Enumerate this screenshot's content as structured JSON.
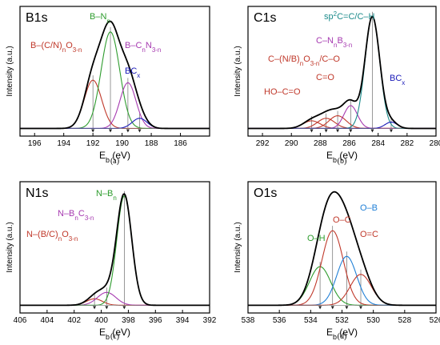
{
  "chart_data": [
    {
      "type": "line",
      "title": "B1s",
      "xlabel": "E_b (eV)",
      "ylabel": "Intensity (a.u.)",
      "xlim": [
        197,
        184
      ],
      "x_ticks": [
        196,
        194,
        192,
        190,
        188,
        186
      ],
      "sublabel": "(a)",
      "peaks": [
        {
          "label": "B–(C/N)nO3-n",
          "color": "#c0392b",
          "center": 192.0,
          "height": 0.38,
          "width": 1.4
        },
        {
          "label": "B–Nn",
          "color": "#2e9c2e",
          "center": 190.8,
          "height": 0.76,
          "width": 1.5
        },
        {
          "label": "B–CnN3-n",
          "color": "#a63ab0",
          "center": 189.6,
          "height": 0.36,
          "width": 1.3
        },
        {
          "label": "BCx",
          "color": "#1a1ab8",
          "center": 188.8,
          "height": 0.08,
          "width": 1.2
        }
      ],
      "annotations": [
        {
          "text": "B–N",
          "sub": "n",
          "color": "#2e9c2e"
        },
        {
          "text": "B–(C/N)",
          "sub": "n",
          "text2": "O",
          "sub2": "3-n",
          "color": "#c0392b"
        },
        {
          "text": "B–C",
          "sub": "n",
          "text2": "N",
          "sub2": "3-n",
          "color": "#a63ab0"
        },
        {
          "text": "BC",
          "sub": "x",
          "color": "#1a1ab8"
        }
      ]
    },
    {
      "type": "line",
      "title": "C1s",
      "xlabel": "E_b (eV)",
      "ylabel": "Intensity (a.u.)",
      "xlim": [
        293,
        280
      ],
      "x_ticks": [
        292,
        290,
        288,
        286,
        284,
        282,
        280
      ],
      "sublabel": "(b)",
      "peaks": [
        {
          "label": "HO–C=O",
          "color": "#c0392b",
          "center": 288.6,
          "height": 0.06,
          "width": 1.4
        },
        {
          "label": "C=O",
          "color": "#c0392b",
          "center": 287.6,
          "height": 0.08,
          "width": 1.4
        },
        {
          "label": "C–(N/B)nO3-n/C–O",
          "color": "#c0392b",
          "center": 286.8,
          "height": 0.1,
          "width": 1.4
        },
        {
          "label": "C–NnB3-n",
          "color": "#a63ab0",
          "center": 285.9,
          "height": 0.18,
          "width": 1.1
        },
        {
          "label": "sp2C=C/C–H",
          "color": "#1a8a8a",
          "center": 284.4,
          "height": 0.88,
          "width": 1.2
        },
        {
          "label": "BCx",
          "color": "#1a1ab8",
          "center": 283.1,
          "height": 0.05,
          "width": 1.0
        }
      ],
      "annotations": [
        {
          "text": "sp",
          "sup": "2",
          "text2": "C=C/C–H",
          "color": "#1a8a8a"
        },
        {
          "text": "C–N",
          "sub": "n",
          "text2": "B",
          "sub2": "3-n",
          "color": "#a63ab0"
        },
        {
          "text": "C–(N/B)",
          "sub": "n",
          "text2": "O",
          "sub2": "3-n",
          "text3": "/C–O",
          "color": "#c0392b"
        },
        {
          "text": "C=O",
          "color": "#c0392b"
        },
        {
          "text": "HO–C=O",
          "color": "#c0392b"
        },
        {
          "text": "BC",
          "sub": "x",
          "color": "#1a1ab8"
        }
      ]
    },
    {
      "type": "line",
      "title": "N1s",
      "xlabel": "E_b (eV)",
      "ylabel": "Intensity (a.u.)",
      "xlim": [
        406,
        392
      ],
      "x_ticks": [
        406,
        404,
        402,
        400,
        398,
        396,
        394,
        392
      ],
      "sublabel": "(c)",
      "peaks": [
        {
          "label": "N–(B/C)nO3-n",
          "color": "#c0392b",
          "center": 400.5,
          "height": 0.05,
          "width": 1.4
        },
        {
          "label": "N–BnC3-n",
          "color": "#a63ab0",
          "center": 399.6,
          "height": 0.1,
          "width": 1.6
        },
        {
          "label": "N–Bn",
          "color": "#2e9c2e",
          "center": 398.3,
          "height": 0.85,
          "width": 1.3
        }
      ],
      "annotations": [
        {
          "text": "N–B",
          "sub": "n",
          "color": "#2e9c2e"
        },
        {
          "text": "N–B",
          "sub": "n",
          "text2": "C",
          "sub2": "3-n",
          "color": "#a63ab0"
        },
        {
          "text": "N–(B/C)",
          "sub": "n",
          "text2": "O",
          "sub2": "3-n",
          "color": "#c0392b"
        }
      ]
    },
    {
      "type": "line",
      "title": "O1s",
      "xlabel": "E_b (eV)",
      "ylabel": "Intensity (a.u.)",
      "xlim": [
        538,
        526
      ],
      "x_ticks": [
        538,
        536,
        534,
        532,
        530,
        528,
        526
      ],
      "sublabel": "(d)",
      "peaks": [
        {
          "label": "O–H",
          "color": "#2e9c2e",
          "center": 533.4,
          "height": 0.3,
          "width": 1.6
        },
        {
          "label": "O–C",
          "color": "#c0392b",
          "center": 532.6,
          "height": 0.58,
          "width": 1.6
        },
        {
          "label": "O–B",
          "color": "#1f7fd6",
          "center": 531.7,
          "height": 0.38,
          "width": 1.5
        },
        {
          "label": "O=C",
          "color": "#c0392b",
          "center": 530.8,
          "height": 0.24,
          "width": 1.6
        }
      ],
      "annotations": [
        {
          "text": "O–C",
          "color": "#c0392b"
        },
        {
          "text": "O–B",
          "color": "#1f7fd6"
        },
        {
          "text": "O–H",
          "color": "#2e9c2e"
        },
        {
          "text": "O=C",
          "color": "#c0392b"
        }
      ]
    }
  ]
}
